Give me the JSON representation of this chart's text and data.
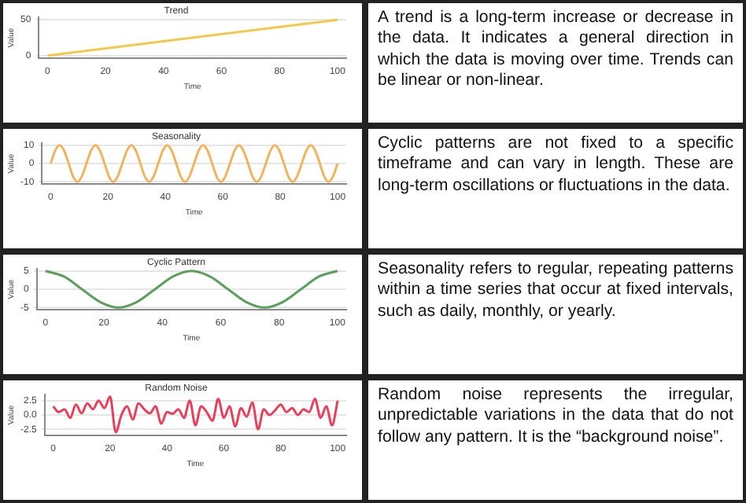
{
  "chart_data": [
    {
      "type": "line",
      "title": "Trend",
      "xlabel": "Time",
      "ylabel": "Value",
      "color": "#f2c94c",
      "grid": "y",
      "x": [
        0,
        100
      ],
      "values": [
        0,
        50
      ],
      "xlim": [
        -3,
        103
      ],
      "ylim": [
        -3,
        53
      ],
      "xticks": [
        0,
        20,
        40,
        60,
        80,
        100
      ],
      "yticks": [
        0,
        50
      ]
    },
    {
      "type": "other",
      "annotations": [
        "A trend is a long-term increase or decrease in the data. It indicates a general direction in which the data is moving over time. Trends can be linear or non-linear."
      ]
    },
    {
      "type": "line",
      "title": "Seasonality",
      "xlabel": "Time",
      "ylabel": "Value",
      "color": "#f0b35e",
      "grid": "y",
      "x": [
        0,
        1.6,
        3.1,
        4.7,
        6.3,
        7.8,
        9.4,
        10.9,
        12.5,
        14.1,
        15.6,
        17.2,
        18.8,
        20.3,
        21.9,
        23.4,
        25,
        26.6,
        28.1,
        29.7,
        31.3,
        32.8,
        34.4,
        35.9,
        37.5,
        39.1,
        40.6,
        42.2,
        43.8,
        45.3,
        46.9,
        48.4,
        50,
        51.6,
        53.1,
        54.7,
        56.3,
        57.8,
        59.4,
        60.9,
        62.5,
        64.1,
        65.6,
        67.2,
        68.8,
        70.3,
        71.9,
        73.4,
        75,
        76.6,
        78.1,
        79.7,
        81.3,
        82.8,
        84.4,
        85.9,
        87.5,
        89.1,
        90.6,
        92.2,
        93.8,
        95.3,
        96.9,
        98.4,
        100
      ],
      "values": [
        0,
        7,
        10,
        7,
        0,
        -7,
        -10,
        -7,
        0,
        7,
        10,
        7,
        0,
        -7,
        -10,
        -7,
        0,
        7,
        10,
        7,
        0,
        -7,
        -10,
        -7,
        0,
        7,
        10,
        7,
        0,
        -7,
        -10,
        -7,
        0,
        7,
        10,
        7,
        0,
        -7,
        -10,
        -7,
        0,
        7,
        10,
        7,
        0,
        -7,
        -10,
        -7,
        0,
        7,
        10,
        7,
        0,
        -7,
        -10,
        -7,
        0,
        7,
        10,
        7,
        0,
        -7,
        -10,
        -7,
        0
      ],
      "xlim": [
        -3,
        103
      ],
      "ylim": [
        -11,
        11
      ],
      "xticks": [
        0,
        20,
        40,
        60,
        80,
        100
      ],
      "yticks": [
        -10,
        0,
        10
      ]
    },
    {
      "type": "other",
      "annotations": [
        "Cyclic patterns are not fixed to a specific timeframe and can vary in length. These are long-term oscillations or fluctuations in the data."
      ]
    },
    {
      "type": "line",
      "title": "Cyclic Pattern",
      "xlabel": "Time",
      "ylabel": "Value",
      "color": "#5c9e5c",
      "grid": "y",
      "x": [
        0,
        6.25,
        12.5,
        18.75,
        25,
        31.25,
        37.5,
        43.75,
        50,
        56.25,
        62.5,
        68.75,
        75,
        81.25,
        87.5,
        93.75,
        100
      ],
      "values": [
        5,
        3.5,
        0,
        -3.5,
        -5,
        -3.5,
        0,
        3.5,
        5,
        3.5,
        0,
        -3.5,
        -5,
        -3.5,
        0,
        3.5,
        5
      ],
      "xlim": [
        -3,
        103
      ],
      "ylim": [
        -5.5,
        5.5
      ],
      "xticks": [
        0,
        20,
        40,
        60,
        80,
        100
      ],
      "yticks": [
        -5,
        0,
        5
      ]
    },
    {
      "type": "other",
      "annotations": [
        "Seasonality refers to regular, repeating patterns within a time series that occur at fixed intervals, such as daily, monthly, or yearly."
      ]
    },
    {
      "type": "line",
      "title": "Random Noise",
      "xlabel": "Time",
      "ylabel": "Value",
      "color": "#e8405a",
      "grid": "y",
      "x": [
        0,
        2,
        4,
        6,
        8,
        10,
        12,
        14,
        16,
        18,
        20,
        22,
        24,
        26,
        28,
        30,
        32,
        34,
        36,
        38,
        40,
        42,
        44,
        46,
        48,
        50,
        52,
        54,
        56,
        58,
        60,
        62,
        64,
        66,
        68,
        70,
        72,
        74,
        76,
        78,
        80,
        82,
        84,
        86,
        88,
        90,
        92,
        94,
        96,
        98,
        100
      ],
      "values": [
        1.5,
        0.5,
        1,
        -0.5,
        1.8,
        0.3,
        2,
        1,
        2.5,
        1.2,
        3.2,
        -3,
        0,
        1.5,
        -0.8,
        2,
        1,
        0.3,
        1.5,
        -1.5,
        0.5,
        0.2,
        1,
        -0.5,
        2.5,
        -1.8,
        1.5,
        0.5,
        -1,
        2.8,
        -0.5,
        1.5,
        -2,
        1.2,
        -0.3,
        2.2,
        -2.5,
        1,
        0,
        0.8,
        1.8,
        0.5,
        1.2,
        0,
        1,
        0.5,
        2.8,
        -0.5,
        1.5,
        -1.8,
        2.5
      ],
      "xlim": [
        -3,
        103
      ],
      "ylim": [
        -3.5,
        3.5
      ],
      "xticks": [
        0,
        20,
        40,
        60,
        80,
        100
      ],
      "yticks": [
        {
          "value": -2.5,
          "label": "-2.5"
        },
        {
          "value": 0,
          "label": "0.0"
        },
        {
          "value": 2.5,
          "label": "2.5"
        }
      ]
    },
    {
      "type": "other",
      "annotations": [
        "Random noise represents the irregular, unpredictable variations in the data that do not follow any pattern. It is the “background noise”."
      ]
    }
  ]
}
